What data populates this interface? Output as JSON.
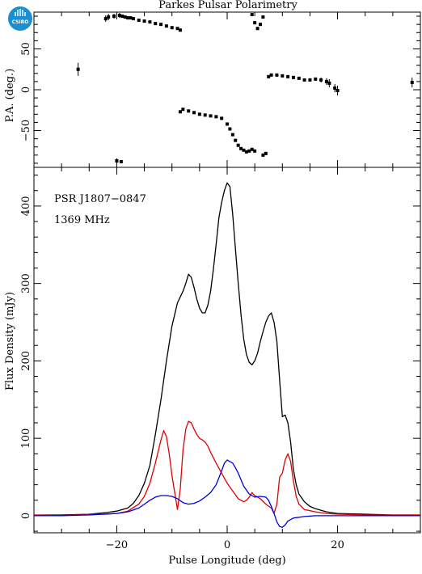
{
  "header": {
    "title": "Parkes Pulsar Polarimetry",
    "logo_text": "CSIRO"
  },
  "chart_data": [
    {
      "type": "scatter",
      "panel": "top",
      "title": "Parkes Pulsar Polarimetry",
      "xlabel": "",
      "ylabel": "P.A. (deg.)",
      "xlim": [
        -35,
        35
      ],
      "ylim": [
        -95,
        95
      ],
      "xticks": [
        -20,
        0,
        20
      ],
      "yticks": [
        -50,
        0,
        50
      ],
      "ytick_labels": [
        "−50",
        "0",
        "50"
      ],
      "grid": false,
      "series": [
        {
          "marker": "square-with-errorbars",
          "color": "#000000",
          "points": [
            {
              "x": -27.0,
              "y": 25,
              "err": 8
            },
            {
              "x": -22.0,
              "y": 87,
              "err": 4
            },
            {
              "x": -21.5,
              "y": 89,
              "err": 4
            },
            {
              "x": -20.5,
              "y": 90,
              "err": 3
            },
            {
              "x": -19.5,
              "y": 91,
              "err": 3
            },
            {
              "x": -19.0,
              "y": 90,
              "err": 2
            },
            {
              "x": -18.5,
              "y": 89,
              "err": 2
            },
            {
              "x": -18.0,
              "y": 88,
              "err": 2
            },
            {
              "x": -17.5,
              "y": 88,
              "err": 1
            },
            {
              "x": -17.0,
              "y": 87,
              "err": 1
            },
            {
              "x": -16.0,
              "y": 85,
              "err": 1
            },
            {
              "x": -15.0,
              "y": 84,
              "err": 1
            },
            {
              "x": -14.0,
              "y": 83,
              "err": 1
            },
            {
              "x": -13.0,
              "y": 81,
              "err": 1
            },
            {
              "x": -12.0,
              "y": 80,
              "err": 1
            },
            {
              "x": -11.0,
              "y": 78,
              "err": 1
            },
            {
              "x": -10.0,
              "y": 76,
              "err": 1
            },
            {
              "x": -9.0,
              "y": 75,
              "err": 1
            },
            {
              "x": -8.5,
              "y": 73,
              "err": 1
            },
            {
              "x": -20.0,
              "y": -87,
              "err": 3
            },
            {
              "x": -19.2,
              "y": -88,
              "err": 2
            },
            {
              "x": -8.5,
              "y": -27,
              "err": 1
            },
            {
              "x": -8.0,
              "y": -24,
              "err": 1
            },
            {
              "x": -7.0,
              "y": -26,
              "err": 1
            },
            {
              "x": -6.0,
              "y": -28,
              "err": 1
            },
            {
              "x": -5.0,
              "y": -30,
              "err": 1
            },
            {
              "x": -4.0,
              "y": -31,
              "err": 1
            },
            {
              "x": -3.0,
              "y": -32,
              "err": 1
            },
            {
              "x": -2.0,
              "y": -33,
              "err": 1
            },
            {
              "x": -1.0,
              "y": -35,
              "err": 1
            },
            {
              "x": 0.0,
              "y": -42,
              "err": 1
            },
            {
              "x": 0.5,
              "y": -48,
              "err": 1
            },
            {
              "x": 1.0,
              "y": -55,
              "err": 1
            },
            {
              "x": 1.5,
              "y": -62,
              "err": 1
            },
            {
              "x": 2.0,
              "y": -68,
              "err": 1
            },
            {
              "x": 2.5,
              "y": -72,
              "err": 1
            },
            {
              "x": 3.0,
              "y": -74,
              "err": 1
            },
            {
              "x": 3.5,
              "y": -76,
              "err": 1
            },
            {
              "x": 4.0,
              "y": -75,
              "err": 1
            },
            {
              "x": 4.5,
              "y": -73,
              "err": 1
            },
            {
              "x": 5.0,
              "y": -75,
              "err": 1
            },
            {
              "x": 4.5,
              "y": 92,
              "err": 2
            },
            {
              "x": 5.0,
              "y": 82,
              "err": 2
            },
            {
              "x": 5.5,
              "y": 75,
              "err": 2
            },
            {
              "x": 6.0,
              "y": 80,
              "err": 2
            },
            {
              "x": 6.5,
              "y": 89,
              "err": 2
            },
            {
              "x": 6.5,
              "y": -80,
              "err": 2
            },
            {
              "x": 7.0,
              "y": -78,
              "err": 2
            },
            {
              "x": 7.5,
              "y": 16,
              "err": 1
            },
            {
              "x": 8.0,
              "y": 18,
              "err": 1
            },
            {
              "x": 9.0,
              "y": 18,
              "err": 1
            },
            {
              "x": 10.0,
              "y": 17,
              "err": 1
            },
            {
              "x": 11.0,
              "y": 16,
              "err": 1
            },
            {
              "x": 12.0,
              "y": 15,
              "err": 1
            },
            {
              "x": 13.0,
              "y": 14,
              "err": 1
            },
            {
              "x": 14.0,
              "y": 12,
              "err": 1
            },
            {
              "x": 15.0,
              "y": 12,
              "err": 2
            },
            {
              "x": 16.0,
              "y": 13,
              "err": 2
            },
            {
              "x": 17.0,
              "y": 12,
              "err": 3
            },
            {
              "x": 18.0,
              "y": 10,
              "err": 4
            },
            {
              "x": 18.5,
              "y": 8,
              "err": 5
            },
            {
              "x": 19.5,
              "y": 2,
              "err": 5
            },
            {
              "x": 20.0,
              "y": -1,
              "err": 6
            },
            {
              "x": 33.5,
              "y": 9,
              "err": 6
            }
          ]
        }
      ]
    },
    {
      "type": "line",
      "panel": "bottom",
      "xlabel": "Pulse Longitude (deg)",
      "ylabel": "Flux Density (mJy)",
      "xlim": [
        -35,
        35
      ],
      "ylim": [
        -22,
        450
      ],
      "xticks": [
        -20,
        0,
        20
      ],
      "xtick_labels": [
        "−20",
        "0",
        "20"
      ],
      "yticks": [
        0,
        100,
        200,
        300,
        400
      ],
      "grid": false,
      "annotations": [
        "PSR J1807−0847",
        "1369 MHz"
      ],
      "series": [
        {
          "color": "#000000",
          "x": [
            -35,
            -30,
            -25,
            -22,
            -20,
            -18,
            -17,
            -16,
            -15,
            -14,
            -13,
            -12,
            -11,
            -10,
            -9,
            -8,
            -7.5,
            -7,
            -6.5,
            -6,
            -5.5,
            -5,
            -4.5,
            -4,
            -3.5,
            -3,
            -2.5,
            -2,
            -1.5,
            -1,
            -0.5,
            0,
            0.5,
            1,
            1.5,
            2,
            2.5,
            3,
            3.5,
            4,
            4.5,
            5,
            5.5,
            6,
            6.5,
            7,
            7.5,
            8,
            8.5,
            9,
            9.5,
            10,
            10.5,
            11,
            11.5,
            12,
            12.5,
            13,
            14,
            15,
            16,
            18,
            20,
            25,
            30,
            35
          ],
          "y": [
            1,
            1,
            2,
            4,
            6,
            10,
            16,
            26,
            42,
            65,
            105,
            150,
            200,
            245,
            275,
            290,
            300,
            312,
            308,
            295,
            280,
            268,
            262,
            262,
            272,
            290,
            318,
            350,
            385,
            405,
            420,
            430,
            425,
            390,
            345,
            300,
            260,
            228,
            208,
            198,
            195,
            200,
            210,
            225,
            238,
            250,
            258,
            262,
            250,
            225,
            175,
            128,
            130,
            120,
            95,
            60,
            40,
            28,
            18,
            12,
            9,
            5,
            3,
            2,
            1,
            1
          ]
        },
        {
          "color": "#e00000",
          "x": [
            -35,
            -30,
            -25,
            -22,
            -20,
            -18,
            -16,
            -15,
            -14,
            -13,
            -12,
            -11.5,
            -11,
            -10.5,
            -10,
            -9.5,
            -9,
            -8.5,
            -8,
            -7.5,
            -7,
            -6.5,
            -6,
            -5.5,
            -5,
            -4.5,
            -4,
            -3.5,
            -3,
            -2,
            -1,
            0,
            1,
            2,
            3,
            3.5,
            4,
            4.5,
            5,
            6,
            7,
            8,
            8.5,
            9,
            9.5,
            10,
            10.5,
            11,
            11.5,
            12,
            12.5,
            13,
            14,
            16,
            18,
            20,
            25,
            30,
            35
          ],
          "y": [
            1,
            0,
            2,
            2,
            3,
            6,
            15,
            25,
            42,
            68,
            98,
            110,
            102,
            80,
            52,
            30,
            8,
            35,
            85,
            112,
            122,
            120,
            112,
            105,
            100,
            98,
            95,
            90,
            82,
            68,
            55,
            42,
            32,
            22,
            18,
            20,
            24,
            30,
            26,
            22,
            15,
            10,
            3,
            15,
            50,
            55,
            72,
            80,
            70,
            45,
            25,
            15,
            8,
            5,
            3,
            2,
            1,
            1,
            1
          ]
        },
        {
          "color": "#0000e0",
          "x": [
            -35,
            -30,
            -25,
            -20,
            -18,
            -16,
            -15,
            -14,
            -13,
            -12,
            -11,
            -10,
            -9,
            -8,
            -7,
            -6,
            -5,
            -4,
            -3,
            -2,
            -1,
            -0.5,
            0,
            0.5,
            1,
            1.5,
            2,
            3,
            4,
            5,
            6,
            7,
            7.5,
            8,
            8.5,
            9,
            9.5,
            10,
            10.5,
            11,
            12,
            14,
            16,
            20,
            25,
            30,
            35
          ],
          "y": [
            0,
            0,
            1,
            3,
            5,
            10,
            15,
            20,
            24,
            26,
            26,
            25,
            22,
            17,
            15,
            16,
            19,
            24,
            30,
            40,
            58,
            68,
            72,
            70,
            68,
            62,
            55,
            38,
            28,
            24,
            25,
            24,
            20,
            12,
            3,
            -8,
            -14,
            -15,
            -12,
            -7,
            -3,
            -1,
            0,
            0,
            0,
            0,
            0
          ]
        }
      ]
    }
  ]
}
